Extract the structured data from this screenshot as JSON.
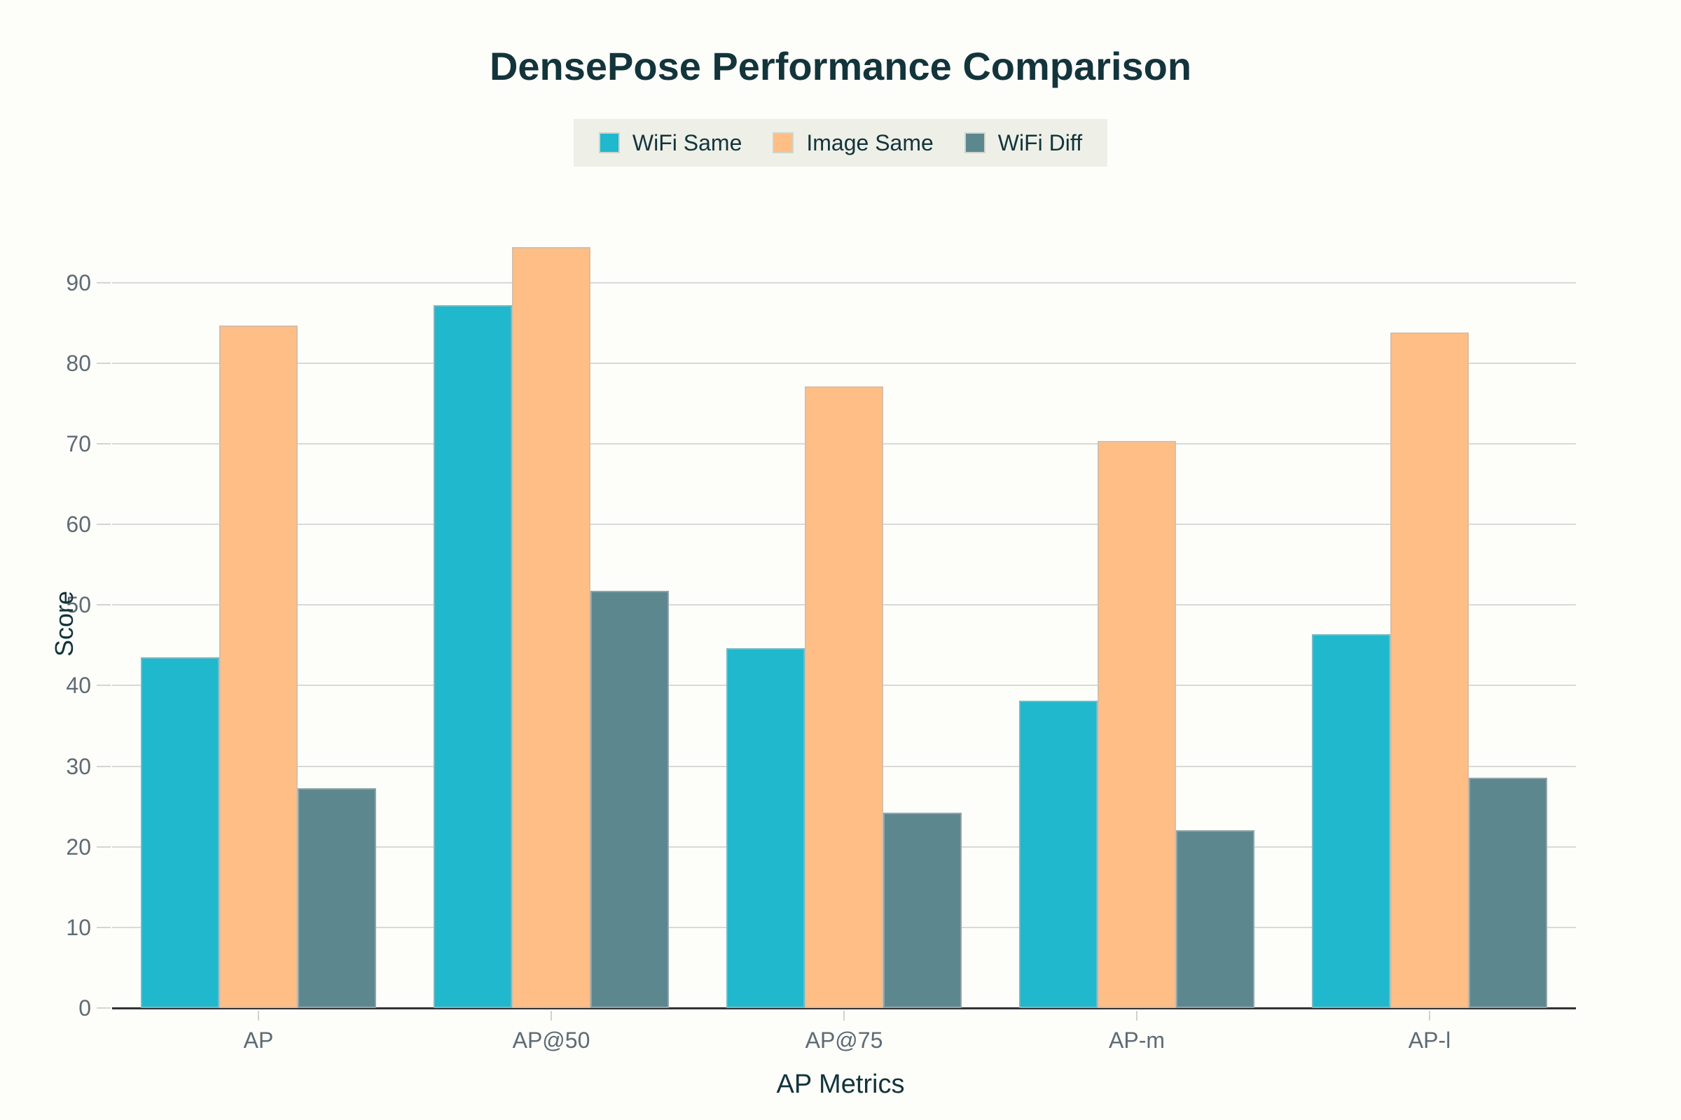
{
  "chart_data": {
    "type": "bar",
    "title": "DensePose Performance Comparison",
    "xlabel": "AP Metrics",
    "ylabel": "Score",
    "categories": [
      "AP",
      "AP@50",
      "AP@75",
      "AP-m",
      "AP-l"
    ],
    "series": [
      {
        "name": "WiFi Same",
        "color": "#1FB8CD",
        "values": [
          43.5,
          87.2,
          44.6,
          38.1,
          46.4
        ]
      },
      {
        "name": "Image Same",
        "color": "#FFBE85",
        "values": [
          84.7,
          94.4,
          77.1,
          70.3,
          83.8
        ]
      },
      {
        "name": "WiFi Diff",
        "color": "#5D878F",
        "values": [
          27.3,
          51.8,
          24.2,
          22.1,
          28.6
        ]
      }
    ],
    "ylim": [
      0,
      99
    ],
    "yticks": [
      0,
      10,
      20,
      30,
      40,
      50,
      60,
      70,
      80,
      90
    ],
    "grid": true,
    "legend_position": "top-center",
    "accent_colors": {
      "grid": "#d9d9d9",
      "axis_line": "#333333",
      "tick_text": "#5e6b73",
      "title_text": "#13343b",
      "legend_background": "#eef0e8"
    }
  }
}
